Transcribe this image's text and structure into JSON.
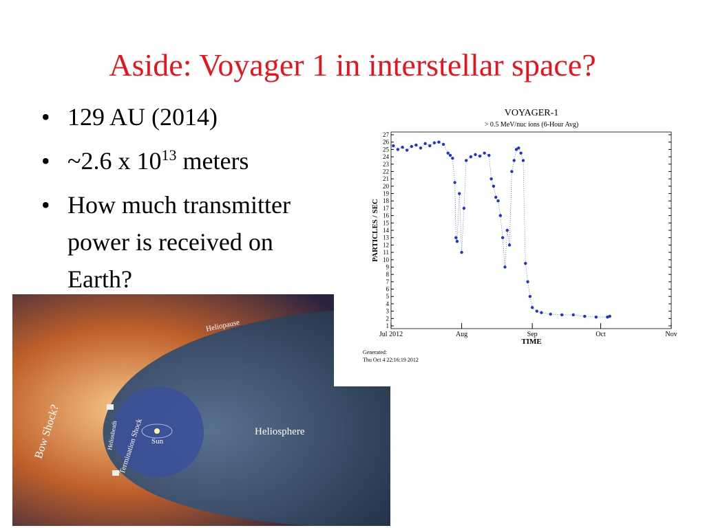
{
  "slide": {
    "title": "Aside: Voyager 1 in interstellar space?",
    "bullets": [
      "129 AU (2014)",
      {
        "base": "~2.6 x 10",
        "exponent": "13",
        "unit": "meters"
      },
      "How much transmitter power is received on Earth?"
    ]
  },
  "image": {
    "labels": [
      "Heliopause",
      "Bow Shock?",
      "Heliosheath",
      "Termination Shock",
      "Sun",
      "Heliosphere"
    ]
  },
  "chart_data": {
    "type": "scatter",
    "title": "VOYAGER-1",
    "subtitle": "> 0.5 MeV/nuc ions (6-Hour Avg)",
    "y_label": "PARTICLES / SEC",
    "x_label": "TIME",
    "footer": [
      "Generated:",
      "Thu Oct  4 22:16:19 2012"
    ],
    "color": "#2233cc",
    "x": [
      1,
      3,
      5,
      7,
      9,
      11,
      13,
      15,
      17,
      19,
      21,
      23,
      25,
      26,
      27,
      28,
      28.5,
      29,
      30,
      31,
      32,
      33,
      35,
      37,
      39,
      41,
      43,
      44,
      45,
      46,
      47,
      48,
      49,
      50,
      51,
      52,
      53,
      54,
      55,
      56,
      57,
      58,
      59,
      60,
      61,
      62,
      64,
      66,
      70,
      75,
      80,
      85,
      90,
      95,
      96
    ],
    "values": [
      25.5,
      25,
      25.3,
      24.9,
      25.4,
      25.6,
      25.2,
      25.8,
      25.5,
      25.9,
      26,
      25.7,
      24.5,
      24.2,
      23.8,
      20.5,
      13,
      12.5,
      19,
      11,
      17,
      23.5,
      24,
      24.3,
      24.1,
      24.5,
      24.2,
      21,
      20,
      18.5,
      18,
      16,
      13,
      9,
      14,
      12,
      22,
      23.5,
      25,
      25.2,
      24.5,
      23.5,
      9.5,
      7,
      5,
      3.5,
      3,
      2.8,
      2.6,
      2.5,
      2.5,
      2.3,
      2.2,
      2.2,
      2.3
    ],
    "xlim": [
      0,
      123
    ],
    "ylim": [
      1,
      27
    ],
    "xticks": [
      {
        "value": 0,
        "label": "Jul 2012"
      },
      {
        "value": 31,
        "label": "Aug"
      },
      {
        "value": 62,
        "label": "Sep"
      },
      {
        "value": 92,
        "label": "Oct"
      },
      {
        "value": 123,
        "label": "Nov"
      }
    ],
    "yticks": [
      1,
      2,
      3,
      4,
      5,
      6,
      7,
      8,
      9,
      10,
      11,
      12,
      13,
      14,
      15,
      16,
      17,
      18,
      19,
      20,
      21,
      22,
      23,
      24,
      25,
      26,
      27
    ]
  }
}
